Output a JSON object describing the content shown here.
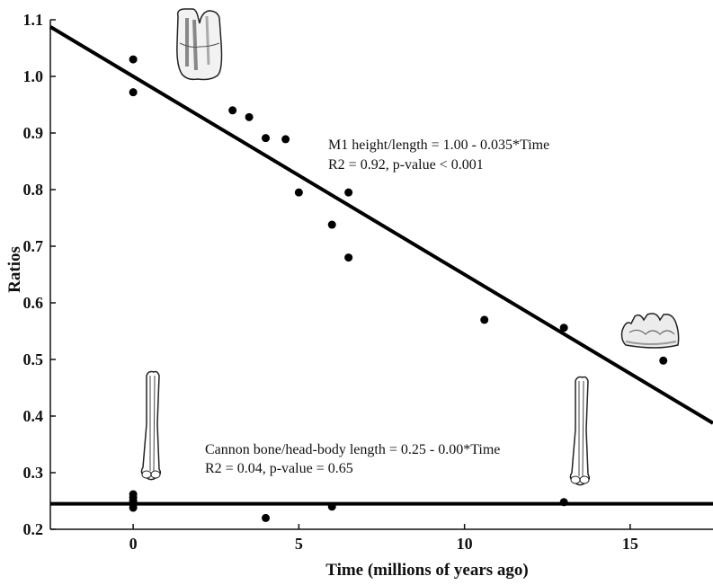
{
  "chart_data": {
    "type": "scatter",
    "xlabel": "Time (millions of years ago)",
    "ylabel": "Ratios",
    "xlim": [
      -2.5,
      17.5
    ],
    "ylim": [
      0.2,
      1.1
    ],
    "xticks": [
      0,
      5,
      10,
      15
    ],
    "yticks": [
      0.2,
      0.3,
      0.4,
      0.5,
      0.6,
      0.7,
      0.8,
      0.9,
      1.0,
      1.1
    ],
    "xtick_labels": [
      "0",
      "5",
      "10",
      "15"
    ],
    "ytick_labels": [
      "0.2",
      "0.3",
      "0.4",
      "0.5",
      "0.6",
      "0.7",
      "0.8",
      "0.9",
      "1.0",
      "1.1"
    ],
    "grid": false,
    "series": [
      {
        "x": [
          0,
          0,
          3,
          3.5,
          4,
          4.6,
          5,
          6,
          6.5,
          6.5,
          10.6,
          13,
          16
        ],
        "y": [
          1.03,
          0.972,
          0.94,
          0.928,
          0.891,
          0.889,
          0.795,
          0.738,
          0.795,
          0.68,
          0.57,
          0.556,
          0.498
        ]
      },
      {
        "x": [
          0,
          0,
          0,
          0,
          0,
          4,
          6,
          13
        ],
        "y": [
          0.262,
          0.256,
          0.25,
          0.244,
          0.238,
          0.22,
          0.24,
          0.248
        ]
      }
    ],
    "fit_lines": [
      {
        "x": [
          -2.5,
          17.5
        ],
        "y": [
          1.0875,
          0.3875
        ]
      },
      {
        "x": [
          -2.5,
          17.5
        ],
        "y": [
          0.245,
          0.245
        ]
      }
    ],
    "annotations": [
      {
        "lines": [
          "M1 height/length = 1.00 - 0.035*Time",
          "R2 = 0.92, p-value < 0.001"
        ]
      },
      {
        "lines": [
          "Cannon bone/head-body length = 0.25 - 0.00*Time",
          "R2 = 0.04, p-value = 0.65"
        ]
      }
    ],
    "illustrations": [
      "molar-tooth-icon",
      "worn-molar-icon",
      "cannon-bone-icon",
      "cannon-bone-icon"
    ]
  }
}
